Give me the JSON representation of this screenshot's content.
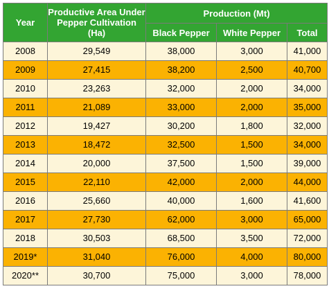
{
  "header": {
    "year": "Year",
    "area": "Productive Area Under Pepper Cultivation (Ha)",
    "production": "Production (Mt)",
    "black": "Black Pepper",
    "white": "White Pepper",
    "total": "Total"
  },
  "rows": [
    {
      "year": "2008",
      "area": "29,549",
      "black": "38,000",
      "white": "3,000",
      "total": "41,000"
    },
    {
      "year": "2009",
      "area": "27,415",
      "black": "38,200",
      "white": "2,500",
      "total": "40,700"
    },
    {
      "year": "2010",
      "area": "23,263",
      "black": "32,000",
      "white": "2,000",
      "total": "34,000"
    },
    {
      "year": "2011",
      "area": "21,089",
      "black": "33,000",
      "white": "2,000",
      "total": "35,000"
    },
    {
      "year": "2012",
      "area": "19,427",
      "black": "30,200",
      "white": "1,800",
      "total": "32,000"
    },
    {
      "year": "2013",
      "area": "18,472",
      "black": "32,500",
      "white": "1,500",
      "total": "34,000"
    },
    {
      "year": "2014",
      "area": "20,000",
      "black": "37,500",
      "white": "1,500",
      "total": "39,000"
    },
    {
      "year": "2015",
      "area": "22,110",
      "black": "42,000",
      "white": "2,000",
      "total": "44,000"
    },
    {
      "year": "2016",
      "area": "25,660",
      "black": "40,000",
      "white": "1,600",
      "total": "41,600"
    },
    {
      "year": "2017",
      "area": "27,730",
      "black": "62,000",
      "white": "3,000",
      "total": "65,000"
    },
    {
      "year": "2018",
      "area": "30,503",
      "black": "68,500",
      "white": "3,500",
      "total": "72,000"
    },
    {
      "year": "2019*",
      "area": "31,040",
      "black": "76,000",
      "white": "4,000",
      "total": "80,000"
    },
    {
      "year": "2020**",
      "area": "30,700",
      "black": "75,000",
      "white": "3,000",
      "total": "78,000"
    }
  ],
  "colors": {
    "header_green": "#33a532",
    "row_light": "#fdf5d9",
    "row_dark": "#fbb202"
  }
}
